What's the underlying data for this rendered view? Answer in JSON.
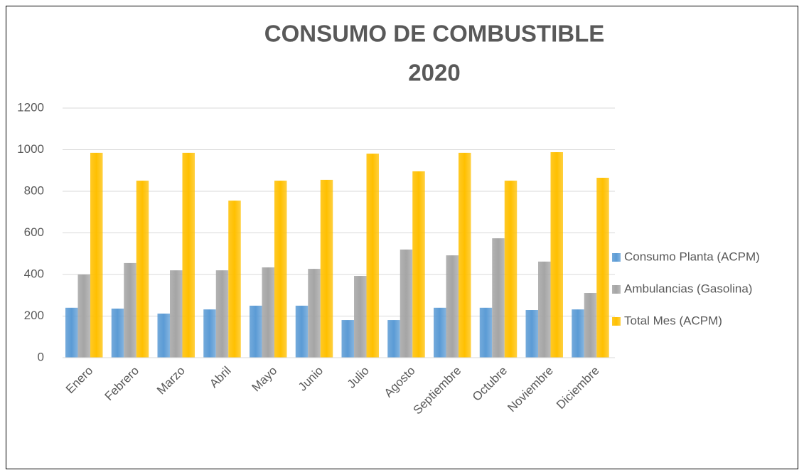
{
  "chart_data": {
    "type": "bar",
    "title": [
      "CONSUMO DE COMBUSTIBLE",
      "2020"
    ],
    "categories": [
      "Enero",
      "Febrero",
      "Marzo",
      "Abril",
      "Mayo",
      "Junio",
      "Julio",
      "Agosto",
      "Septiembre",
      "Octubre",
      "Noviembre",
      "Diciembre"
    ],
    "series": [
      {
        "name": "Consumo Planta (ACPM)",
        "color": "#5b9bd5",
        "values": [
          240,
          236,
          212,
          232,
          250,
          250,
          181,
          181,
          240,
          240,
          229,
          232
        ]
      },
      {
        "name": "Ambulancias (Gasolina)",
        "color": "#a5a5a5",
        "values": [
          400,
          455,
          420,
          420,
          434,
          427,
          393,
          520,
          492,
          574,
          462,
          311
        ]
      },
      {
        "name": "Total Mes (ACPM)",
        "color": "#ffc000",
        "values": [
          985,
          851,
          985,
          755,
          851,
          855,
          981,
          896,
          985,
          851,
          988,
          865
        ]
      }
    ],
    "ylim": [
      0,
      1200
    ],
    "yticks": [
      0,
      200,
      400,
      600,
      800,
      1000,
      1200
    ],
    "grid": true,
    "legend": "right"
  }
}
